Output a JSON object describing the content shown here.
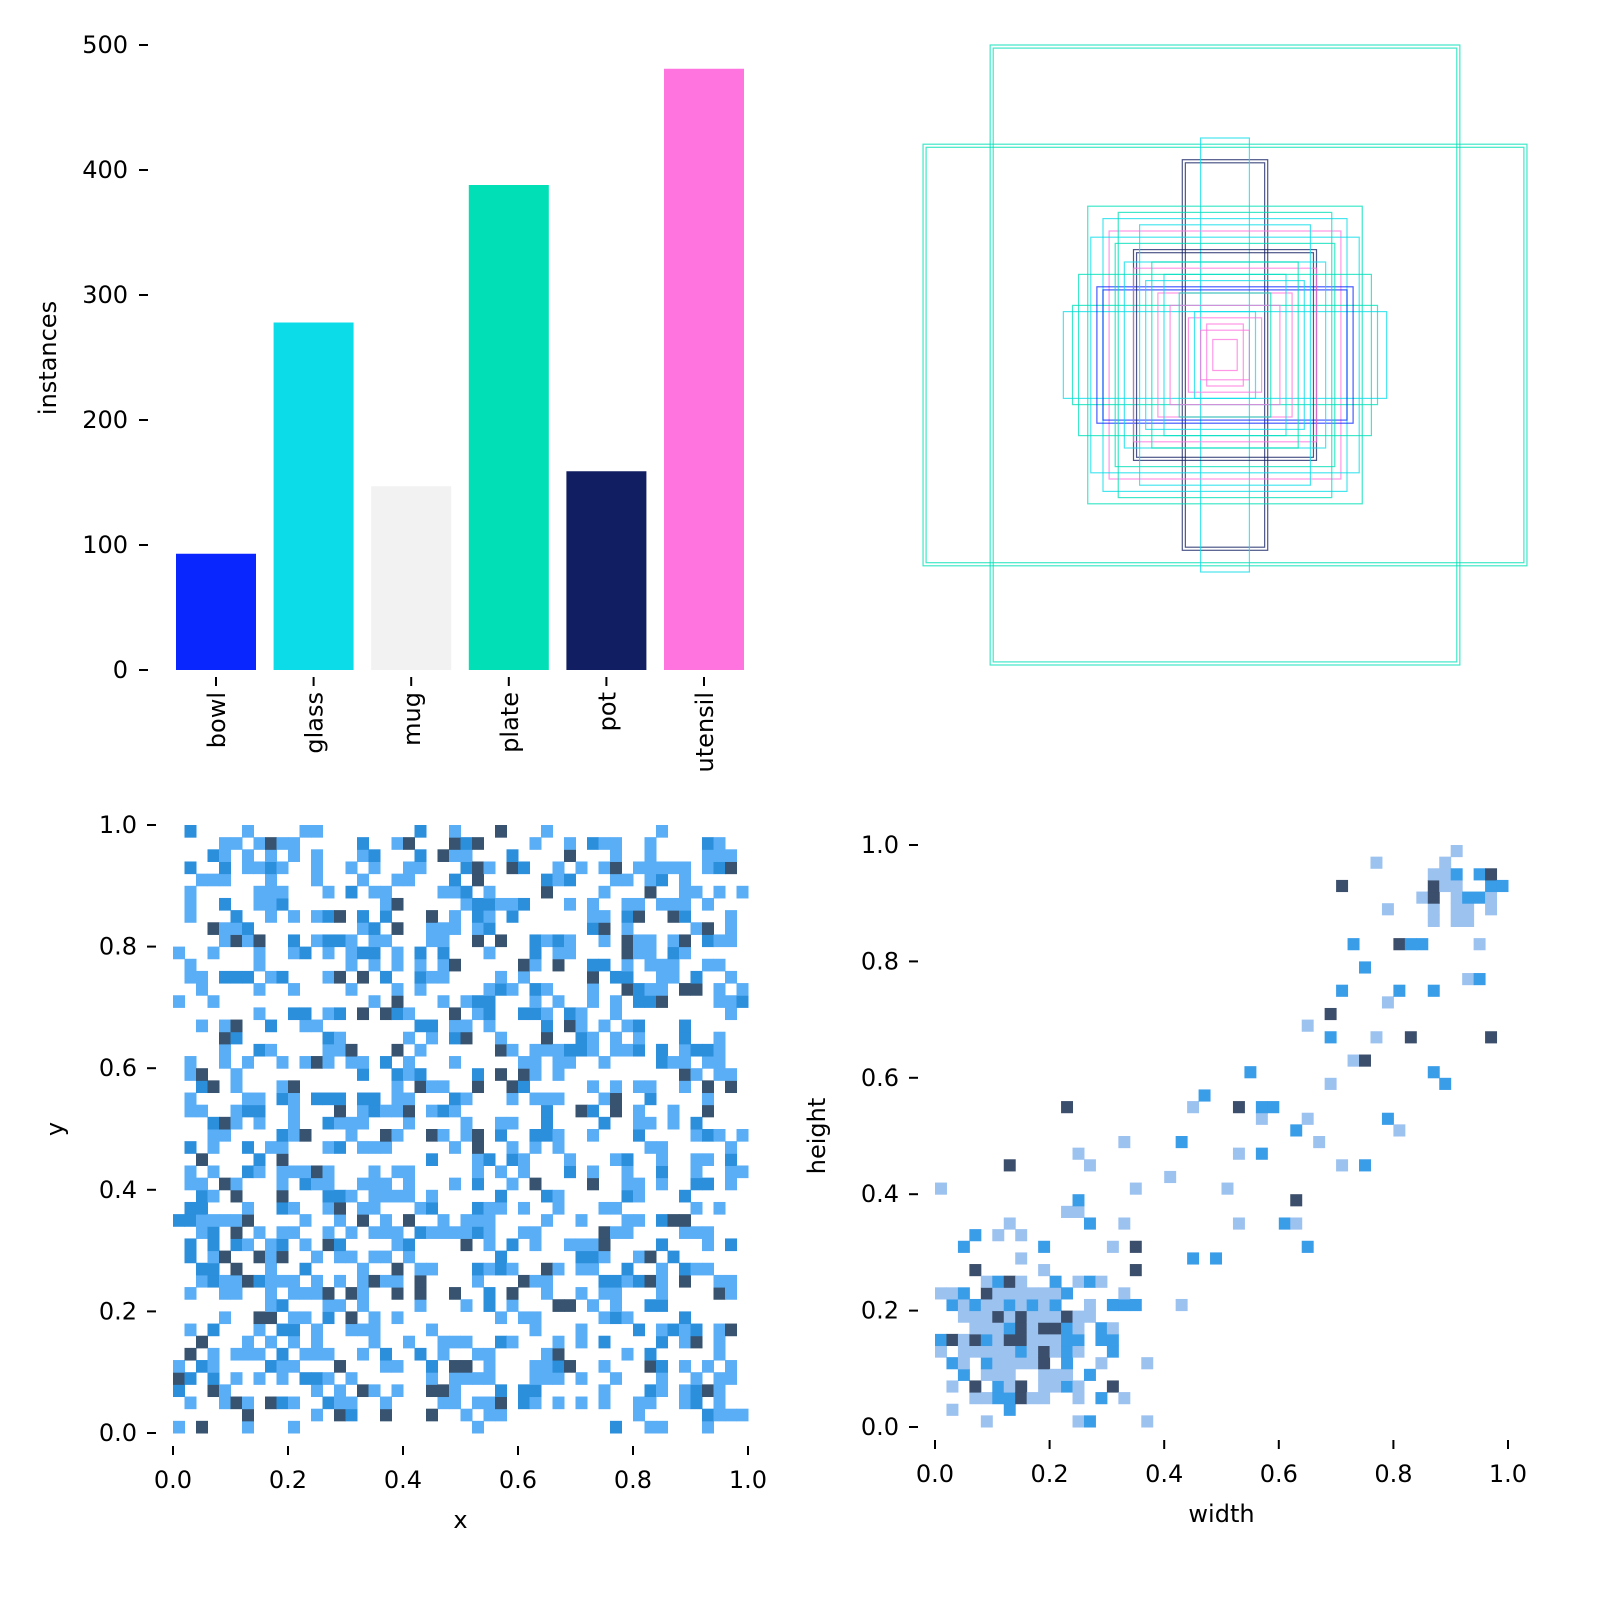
{
  "chart_data": [
    {
      "type": "bar",
      "categories": [
        "bowl",
        "glass",
        "mug",
        "plate",
        "pot",
        "utensil"
      ],
      "values": [
        93,
        278,
        147,
        388,
        159,
        481
      ],
      "colors": [
        "#0a26ff",
        "#0cdce8",
        "#f2f2f2",
        "#00dfb6",
        "#111e62",
        "#ff74df"
      ],
      "xlabel": "",
      "ylabel": "instances",
      "ylim": [
        0,
        500
      ],
      "yticks": [
        "0",
        "100",
        "200",
        "300",
        "400",
        "500"
      ],
      "grid": false
    },
    {
      "type": "boxes",
      "description_of_marks": "class-coloured outlines of label boxes, all centred",
      "boxes": [
        {
          "w": 0.77,
          "h": 1.0,
          "cls": 3
        },
        {
          "w": 0.76,
          "h": 0.99,
          "cls": 3
        },
        {
          "w": 0.99,
          "h": 0.68,
          "cls": 3
        },
        {
          "w": 0.98,
          "h": 0.67,
          "cls": 3
        },
        {
          "w": 0.14,
          "h": 0.63,
          "cls": 4
        },
        {
          "w": 0.13,
          "h": 0.62,
          "cls": 4
        },
        {
          "w": 0.08,
          "h": 0.7,
          "cls": 1
        },
        {
          "w": 0.45,
          "h": 0.48,
          "cls": 3
        },
        {
          "w": 0.4,
          "h": 0.44,
          "cls": 1
        },
        {
          "w": 0.38,
          "h": 0.4,
          "cls": 5
        },
        {
          "w": 0.53,
          "h": 0.14,
          "cls": 1
        },
        {
          "w": 0.5,
          "h": 0.16,
          "cls": 3
        },
        {
          "w": 0.42,
          "h": 0.22,
          "cls": 0
        },
        {
          "w": 0.4,
          "h": 0.21,
          "cls": 0
        },
        {
          "w": 0.3,
          "h": 0.34,
          "cls": 4
        },
        {
          "w": 0.29,
          "h": 0.33,
          "cls": 4
        },
        {
          "w": 0.36,
          "h": 0.36,
          "cls": 3
        },
        {
          "w": 0.33,
          "h": 0.3,
          "cls": 1
        },
        {
          "w": 0.3,
          "h": 0.28,
          "cls": 5
        },
        {
          "w": 0.26,
          "h": 0.24,
          "cls": 1
        },
        {
          "w": 0.24,
          "h": 0.3,
          "cls": 3
        },
        {
          "w": 0.22,
          "h": 0.2,
          "cls": 5
        },
        {
          "w": 0.2,
          "h": 0.26,
          "cls": 1
        },
        {
          "w": 0.18,
          "h": 0.16,
          "cls": 5
        },
        {
          "w": 0.15,
          "h": 0.2,
          "cls": 3
        },
        {
          "w": 0.12,
          "h": 0.12,
          "cls": 5
        },
        {
          "w": 0.1,
          "h": 0.14,
          "cls": 1
        },
        {
          "w": 0.08,
          "h": 0.08,
          "cls": 5
        },
        {
          "w": 0.06,
          "h": 0.1,
          "cls": 5
        },
        {
          "w": 0.04,
          "h": 0.05,
          "cls": 5
        },
        {
          "w": 0.44,
          "h": 0.38,
          "cls": 1
        },
        {
          "w": 0.35,
          "h": 0.46,
          "cls": 3
        },
        {
          "w": 0.28,
          "h": 0.42,
          "cls": 1
        },
        {
          "w": 0.48,
          "h": 0.26,
          "cls": 3
        }
      ]
    },
    {
      "type": "heatmap",
      "xlabel": "x",
      "ylabel": "y",
      "xlim": [
        0,
        1
      ],
      "ylim": [
        0,
        1
      ],
      "xticks": [
        "0.0",
        "0.2",
        "0.4",
        "0.6",
        "0.8",
        "1.0"
      ],
      "yticks": [
        "0.0",
        "0.2",
        "0.4",
        "0.6",
        "0.8",
        "1.0"
      ],
      "bins": 50,
      "distribution": "roughly uniform over 0.0–1.0 in both x and y",
      "colors": [
        "#5aaef5",
        "#2b8fdc",
        "#37536f"
      ]
    },
    {
      "type": "heatmap",
      "xlabel": "width",
      "ylabel": "height",
      "xlim": [
        0,
        1
      ],
      "ylim": [
        0,
        1
      ],
      "xticks": [
        "0.0",
        "0.2",
        "0.4",
        "0.6",
        "0.8",
        "1.0"
      ],
      "yticks": [
        "0.0",
        "0.2",
        "0.4",
        "0.6",
        "0.8",
        "1.0"
      ],
      "bins": 50,
      "distribution": "densest near width 0.15, height 0.15; sparse tail to (1.0, 1.0)",
      "colors": [
        "#9cc2ef",
        "#3a9de8",
        "#3b4e6b"
      ]
    }
  ]
}
